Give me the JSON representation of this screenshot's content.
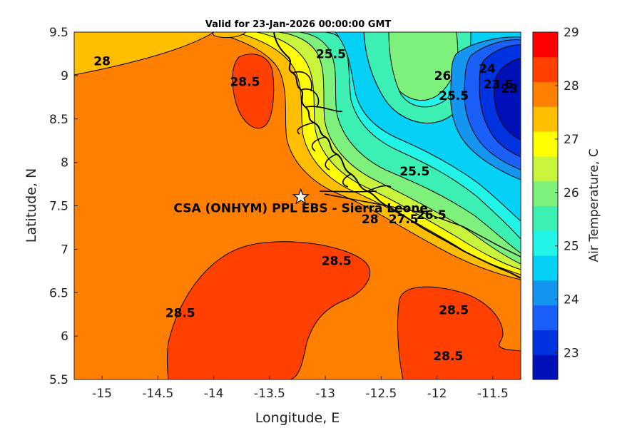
{
  "title": "Valid for 23-Jan-2026 00:00:00 GMT",
  "map": {
    "xlabel": "Longitude, E",
    "ylabel": "Latitude, N",
    "xlim": [
      -15.25,
      -11.25
    ],
    "ylim": [
      5.5,
      9.5
    ],
    "xticks": [
      "-15",
      "-14.5",
      "-14",
      "-13.5",
      "-13",
      "-12.5",
      "-12",
      "-11.5"
    ],
    "yticks": [
      "5.5",
      "6",
      "6.5",
      "7",
      "7.5",
      "8",
      "8.5",
      "9",
      "9.5"
    ],
    "site": {
      "label": "CSA (ONHYM) PPL EBS  - Sierra Leone",
      "lon": -13.22,
      "lat": 7.6,
      "marker": "star"
    },
    "contour_labels": [
      {
        "text": "28",
        "lon": -15.0,
        "lat": 9.12
      },
      {
        "text": "28.5",
        "lon": -13.72,
        "lat": 8.88
      },
      {
        "text": "28.5",
        "lon": -12.9,
        "lat": 6.82
      },
      {
        "text": "28.5",
        "lon": -14.3,
        "lat": 6.22
      },
      {
        "text": "28.5",
        "lon": -11.85,
        "lat": 6.25
      },
      {
        "text": "28.5",
        "lon": -11.9,
        "lat": 5.72
      },
      {
        "text": "25.5",
        "lon": -12.95,
        "lat": 9.2
      },
      {
        "text": "25.5",
        "lon": -12.2,
        "lat": 7.85
      },
      {
        "text": "26",
        "lon": -11.95,
        "lat": 8.95
      },
      {
        "text": "25.5",
        "lon": -11.85,
        "lat": 8.72
      },
      {
        "text": "24",
        "lon": -11.55,
        "lat": 9.03
      },
      {
        "text": "23.5",
        "lon": -11.45,
        "lat": 8.85
      },
      {
        "text": "23",
        "lon": -11.35,
        "lat": 8.8
      },
      {
        "text": "26.5",
        "lon": -12.05,
        "lat": 7.35
      },
      {
        "text": "27.5",
        "lon": -12.3,
        "lat": 7.3
      },
      {
        "text": "28",
        "lon": -12.6,
        "lat": 7.3
      }
    ]
  },
  "colorbar": {
    "label": "Air Temperature, C",
    "min": 22.5,
    "max": 29,
    "ticks": [
      "23",
      "24",
      "25",
      "26",
      "27",
      "28",
      "29"
    ],
    "colors": [
      "#0010b8",
      "#0032e0",
      "#1a60f8",
      "#1496f0",
      "#05d0f5",
      "#20f5e8",
      "#3cf0b4",
      "#7ef07c",
      "#c8f53c",
      "#ffff00",
      "#ffbe00",
      "#ff8000",
      "#ff4000",
      "#ff0000"
    ]
  }
}
